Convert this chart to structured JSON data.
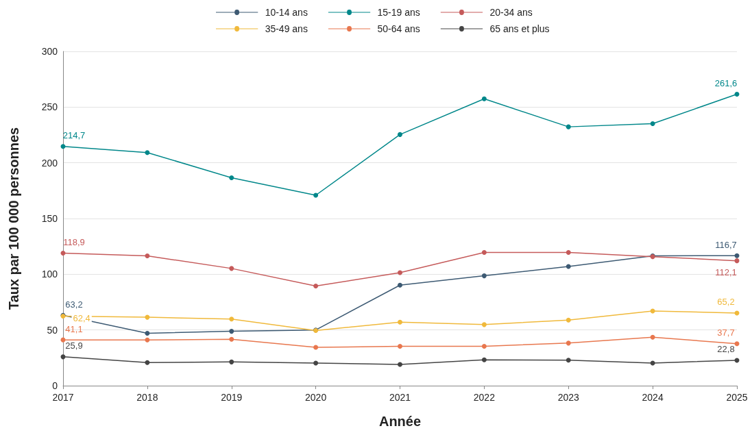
{
  "chart_data": {
    "type": "line",
    "xlabel": "Année",
    "ylabel": "Taux par 100 000 personnes",
    "x": [
      2017,
      2018,
      2019,
      2020,
      2021,
      2022,
      2023,
      2024,
      2025
    ],
    "xlim": [
      2017,
      2025
    ],
    "xticks": [
      2017,
      2018,
      2019,
      2020,
      2021,
      2022,
      2023,
      2024,
      2025
    ],
    "ylim": [
      0,
      300
    ],
    "yticks": [
      0,
      50,
      100,
      150,
      200,
      250,
      300
    ],
    "grid": "y",
    "legend": "top",
    "marker": "circle",
    "line_style": "solid",
    "series": [
      {
        "name": "10-14 ans",
        "color": "#3d5a73",
        "values": [
          63.2,
          47,
          48.8,
          50,
          90.2,
          98.6,
          107,
          116.5,
          116.7
        ],
        "value_labels": [
          "63,2",
          null,
          null,
          null,
          null,
          null,
          null,
          null,
          "116,7"
        ]
      },
      {
        "name": "15-19 ans",
        "color": "#00878a",
        "values": [
          214.7,
          209.2,
          186.6,
          170.9,
          225.4,
          257.4,
          232.3,
          235.1,
          261.6
        ],
        "value_labels": [
          "214,7",
          null,
          null,
          null,
          null,
          null,
          null,
          null,
          "261,6"
        ]
      },
      {
        "name": "20-34 ans",
        "color": "#c55a5a",
        "values": [
          118.9,
          116.5,
          105.2,
          89.5,
          101.4,
          119.6,
          119.6,
          115.8,
          112.1
        ],
        "value_labels": [
          "118,9",
          null,
          null,
          null,
          null,
          null,
          null,
          null,
          "112,1"
        ]
      },
      {
        "name": "35-49 ans",
        "color": "#f0b93b",
        "values": [
          62.4,
          61.4,
          59.8,
          49.5,
          57,
          54.8,
          58.9,
          67,
          65.2
        ],
        "value_labels": [
          "62,4",
          null,
          null,
          null,
          null,
          null,
          null,
          null,
          "65,2"
        ]
      },
      {
        "name": "50-64 ans",
        "color": "#e8774e",
        "values": [
          41.1,
          41,
          41.6,
          34.4,
          35.4,
          35.4,
          38.2,
          43.5,
          37.7
        ],
        "value_labels": [
          "41,1",
          null,
          null,
          null,
          null,
          null,
          null,
          null,
          "37,7"
        ]
      },
      {
        "name": "65 ans et plus",
        "color": "#444444",
        "values": [
          25.9,
          20.7,
          21.3,
          20.3,
          19.1,
          23.2,
          22.9,
          20.3,
          22.8
        ],
        "value_labels": [
          "25,9",
          null,
          null,
          null,
          null,
          null,
          null,
          null,
          "22,8"
        ]
      }
    ]
  }
}
